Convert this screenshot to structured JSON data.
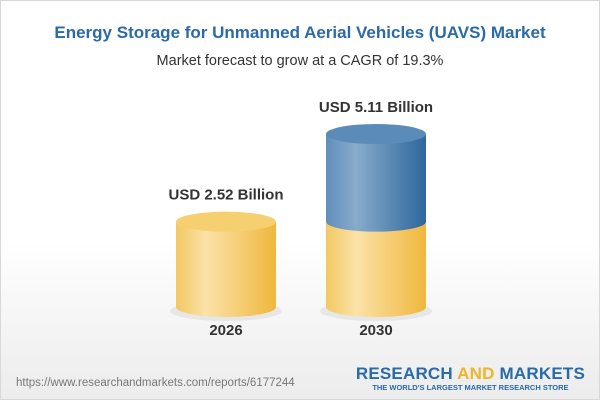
{
  "chart_data": {
    "type": "bar",
    "style": "3d-cylinder",
    "title": "Energy Storage for Unmanned Aerial Vehicles (UAVS) Market",
    "subtitle": "Market forecast to grow at a CAGR of 19.3%",
    "categories": [
      "2026",
      "2030"
    ],
    "values": [
      2.52,
      5.11
    ],
    "data_labels": [
      "USD 2.52 Billion",
      "USD 5.11 Billion"
    ],
    "unit": "USD Billion",
    "colors": {
      "base": "#f3c55a",
      "growth": "#4a82b4",
      "title": "#2a6aa8"
    },
    "grid": false
  },
  "footer": {
    "url": "https://www.researchandmarkets.com/reports/6177244",
    "logo_part1": "RESEARCH ",
    "logo_part2": "AND",
    "logo_part3": " MARKETS",
    "logo_tagline": "THE WORLD'S LARGEST MARKET RESEARCH STORE"
  }
}
